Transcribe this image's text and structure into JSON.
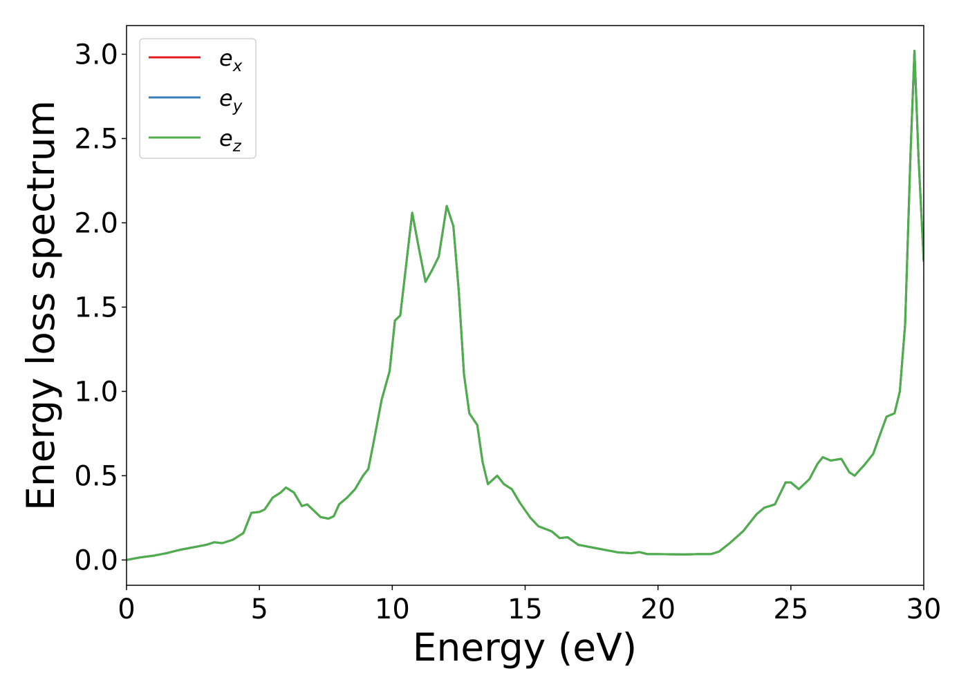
{
  "chart_data": {
    "type": "line",
    "xlabel": "Energy (eV)",
    "ylabel": "Energy loss spectrum",
    "x": [
      0,
      0.5,
      1,
      1.5,
      2,
      2.5,
      3,
      3.3,
      3.6,
      4,
      4.4,
      4.7,
      5,
      5.2,
      5.5,
      5.8,
      6,
      6.3,
      6.6,
      6.8,
      7,
      7.3,
      7.6,
      7.8,
      8,
      8.3,
      8.6,
      8.9,
      9.1,
      9.3,
      9.6,
      9.9,
      10.1,
      10.3,
      10.5,
      10.75,
      11,
      11.25,
      11.5,
      11.75,
      12.05,
      12.3,
      12.5,
      12.7,
      12.9,
      13.2,
      13.4,
      13.6,
      13.95,
      14.2,
      14.5,
      14.8,
      15.2,
      15.5,
      16,
      16.3,
      16.6,
      17,
      17.5,
      18,
      18.5,
      19,
      19.3,
      19.6,
      20,
      21,
      21.5,
      22,
      22.3,
      22.7,
      23.2,
      23.7,
      24,
      24.4,
      24.8,
      25,
      25.3,
      25.7,
      26,
      26.2,
      26.5,
      26.9,
      27.2,
      27.4,
      27.8,
      28.1,
      28.3,
      28.6,
      28.9,
      29.1,
      29.3,
      29.5,
      29.65,
      29.8,
      30
    ],
    "series": [
      {
        "name": "ex",
        "color": "#e41a1c",
        "values": [
          0,
          0.015,
          0.025,
          0.04,
          0.06,
          0.075,
          0.09,
          0.105,
          0.1,
          0.12,
          0.16,
          0.28,
          0.285,
          0.3,
          0.37,
          0.4,
          0.43,
          0.4,
          0.32,
          0.33,
          0.3,
          0.255,
          0.245,
          0.26,
          0.33,
          0.37,
          0.42,
          0.5,
          0.54,
          0.7,
          0.95,
          1.12,
          1.42,
          1.45,
          1.72,
          2.06,
          1.85,
          1.65,
          1.72,
          1.8,
          2.1,
          1.98,
          1.6,
          1.1,
          0.87,
          0.8,
          0.58,
          0.45,
          0.5,
          0.45,
          0.42,
          0.34,
          0.25,
          0.2,
          0.17,
          0.13,
          0.135,
          0.09,
          0.075,
          0.06,
          0.045,
          0.04,
          0.047,
          0.035,
          0.035,
          0.033,
          0.035,
          0.035,
          0.05,
          0.1,
          0.17,
          0.27,
          0.31,
          0.33,
          0.46,
          0.46,
          0.42,
          0.48,
          0.57,
          0.61,
          0.59,
          0.6,
          0.52,
          0.5,
          0.57,
          0.63,
          0.72,
          0.85,
          0.87,
          1.0,
          1.4,
          2.4,
          3.02,
          2.4,
          1.77
        ]
      },
      {
        "name": "ey",
        "color": "#377eb8",
        "values": [
          0,
          0.015,
          0.025,
          0.04,
          0.06,
          0.075,
          0.09,
          0.105,
          0.1,
          0.12,
          0.16,
          0.28,
          0.285,
          0.3,
          0.37,
          0.4,
          0.43,
          0.4,
          0.32,
          0.33,
          0.3,
          0.255,
          0.245,
          0.26,
          0.33,
          0.37,
          0.42,
          0.5,
          0.54,
          0.7,
          0.95,
          1.12,
          1.42,
          1.45,
          1.72,
          2.06,
          1.85,
          1.65,
          1.72,
          1.8,
          2.1,
          1.98,
          1.6,
          1.1,
          0.87,
          0.8,
          0.58,
          0.45,
          0.5,
          0.45,
          0.42,
          0.34,
          0.25,
          0.2,
          0.17,
          0.13,
          0.135,
          0.09,
          0.075,
          0.06,
          0.045,
          0.04,
          0.047,
          0.035,
          0.035,
          0.033,
          0.035,
          0.035,
          0.05,
          0.1,
          0.17,
          0.27,
          0.31,
          0.33,
          0.46,
          0.46,
          0.42,
          0.48,
          0.57,
          0.61,
          0.59,
          0.6,
          0.52,
          0.5,
          0.57,
          0.63,
          0.72,
          0.85,
          0.87,
          1.0,
          1.4,
          2.4,
          3.02,
          2.4,
          1.77
        ]
      },
      {
        "name": "ez",
        "color": "#4daf4a",
        "values": [
          0,
          0.015,
          0.025,
          0.04,
          0.06,
          0.075,
          0.09,
          0.105,
          0.1,
          0.12,
          0.16,
          0.28,
          0.285,
          0.3,
          0.37,
          0.4,
          0.43,
          0.4,
          0.32,
          0.33,
          0.3,
          0.255,
          0.245,
          0.26,
          0.33,
          0.37,
          0.42,
          0.5,
          0.54,
          0.7,
          0.95,
          1.12,
          1.42,
          1.45,
          1.72,
          2.06,
          1.85,
          1.65,
          1.72,
          1.8,
          2.1,
          1.98,
          1.6,
          1.1,
          0.87,
          0.8,
          0.58,
          0.45,
          0.5,
          0.45,
          0.42,
          0.34,
          0.25,
          0.2,
          0.17,
          0.13,
          0.135,
          0.09,
          0.075,
          0.06,
          0.045,
          0.04,
          0.047,
          0.035,
          0.035,
          0.033,
          0.035,
          0.035,
          0.05,
          0.1,
          0.17,
          0.27,
          0.31,
          0.33,
          0.46,
          0.46,
          0.42,
          0.48,
          0.57,
          0.61,
          0.59,
          0.6,
          0.52,
          0.5,
          0.57,
          0.63,
          0.72,
          0.85,
          0.87,
          1.0,
          1.4,
          2.4,
          3.02,
          2.4,
          1.77
        ]
      }
    ],
    "xlim": [
      0,
      30
    ],
    "xticks": [
      0,
      5,
      10,
      15,
      20,
      25,
      30
    ],
    "ylim": [
      -0.15,
      3.17
    ],
    "yticks": [
      {
        "value": 0,
        "label": "0.0"
      },
      0.5,
      {
        "value": 1,
        "label": "1.0"
      },
      1.5,
      {
        "value": 2,
        "label": "2.0"
      },
      2.5,
      {
        "value": 3,
        "label": "3.0"
      }
    ],
    "legend": "upper left",
    "grid": false
  }
}
